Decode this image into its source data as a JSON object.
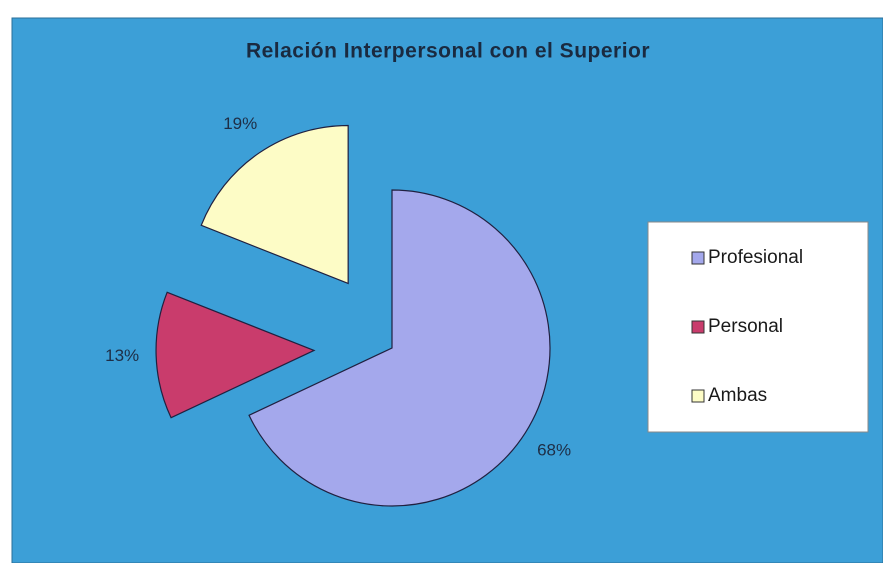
{
  "chart_data": {
    "type": "pie",
    "title": "Relación Interpersonal con el Superior",
    "categories": [
      "Profesional",
      "Personal",
      "Ambas"
    ],
    "values": [
      68,
      13,
      19
    ],
    "value_labels": [
      "68%",
      "13%",
      "19%"
    ],
    "colors": [
      "#a4a8ec",
      "#c93c6c",
      "#fdfcc6"
    ],
    "legend": "right"
  }
}
